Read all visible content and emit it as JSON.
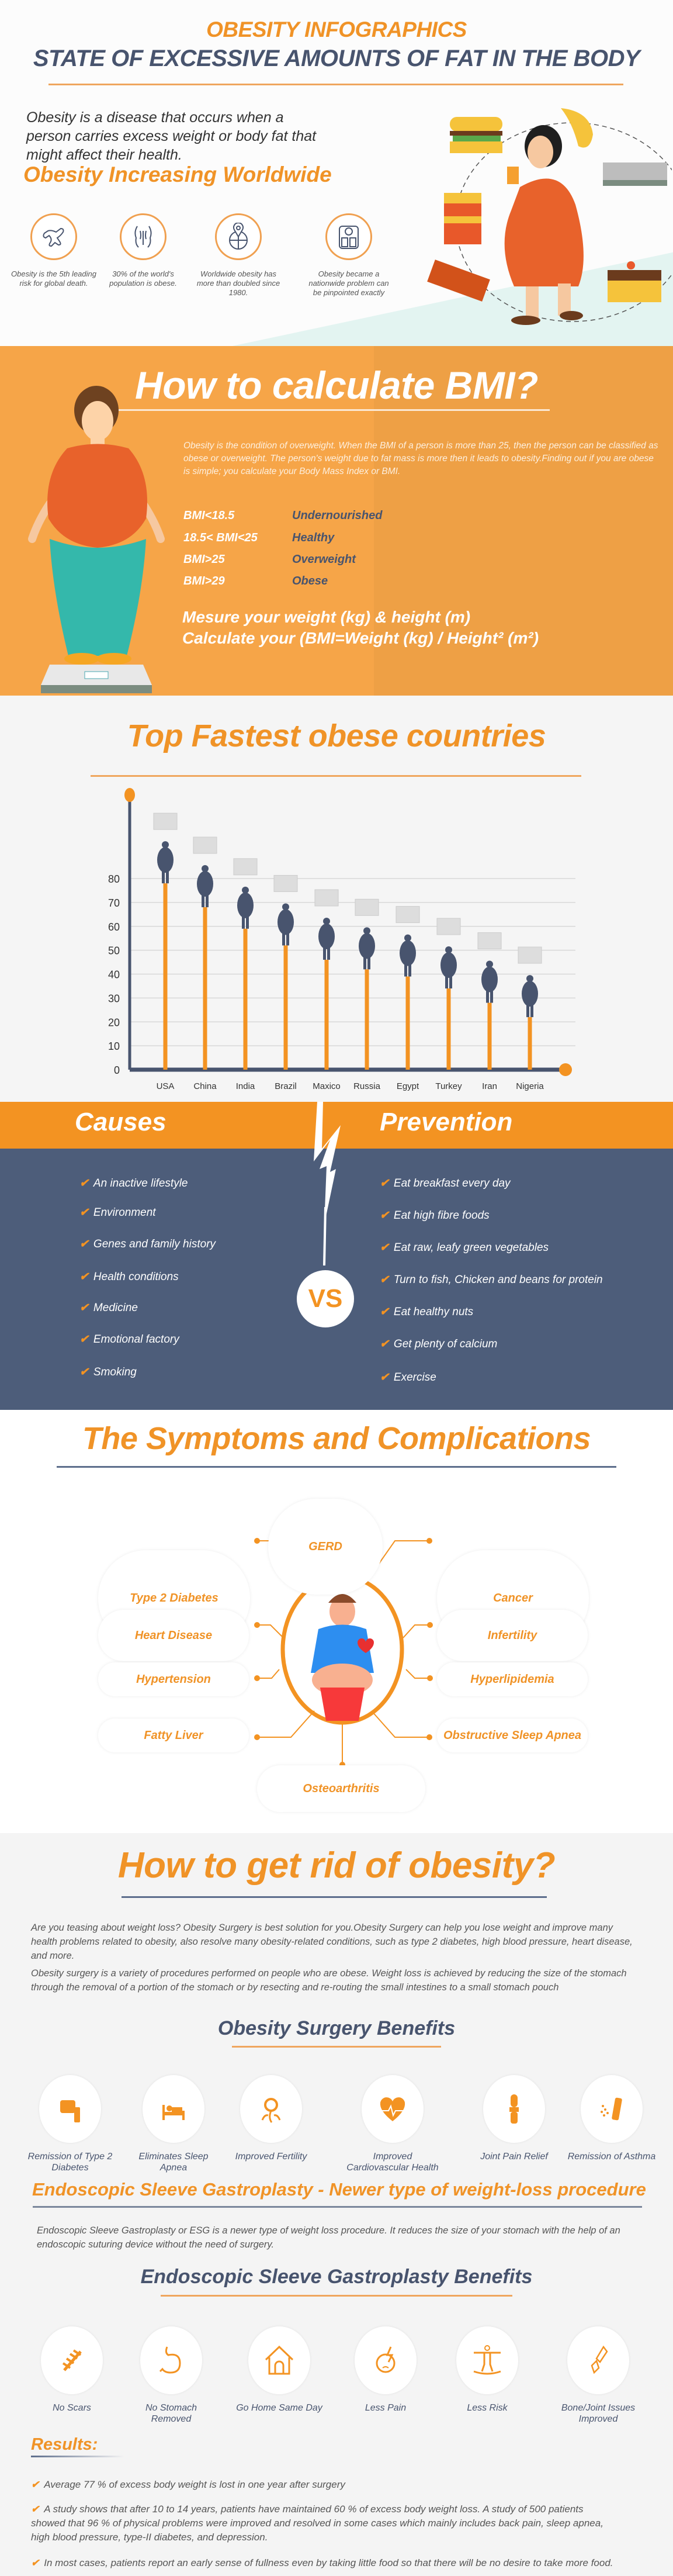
{
  "header": {
    "title": "OBESITY INFOGRAPHICS",
    "subtitle": "STATE OF EXCESSIVE AMOUNTS OF FAT IN THE BODY",
    "intro": "Obesity is a disease that occurs when a person carries excess weight or body fat that might affect their health.",
    "worldwide_heading": "Obesity Increasing Worldwide",
    "stats": [
      {
        "icon": "body-outline-icon",
        "text": "Obesity is the 5th leading risk for global death."
      },
      {
        "icon": "torso-icon",
        "text": "30% of the world's population is obese."
      },
      {
        "icon": "globe-pin-icon",
        "text": "Worldwide obesity has more than doubled since 1980."
      },
      {
        "icon": "scale-icon",
        "text": "Obesity became a nationwide problem can be pinpointed exactly"
      }
    ]
  },
  "bmi": {
    "title": "How to calculate BMI?",
    "description": "Obesity is the condition of overweight. When the BMI of a person is more than 25, then the person can be classified as obese or overweight. The person's weight due to fat mass is more then it leads to obesity.Finding out if you are obese is simple; you calculate your Body Mass Index or BMI.",
    "ranges": [
      {
        "range": "BMI<18.5",
        "label": "Undernourished"
      },
      {
        "range": "18.5< BMI<25",
        "label": "Healthy"
      },
      {
        "range": "BMI>25",
        "label": "Overweight"
      },
      {
        "range": "BMI>29",
        "label": "Obese"
      }
    ],
    "step1": "Mesure your weight (kg) & height (m)",
    "step2": "Calculate your (BMI=Weight (kg) / Height² (m²)"
  },
  "chart_data": {
    "type": "bar",
    "title": "Top Fastest obese countries",
    "categories": [
      "USA",
      "China",
      "India",
      "Brazil",
      "Maxico",
      "Russia",
      "Egypt",
      "Turkey",
      "Iran",
      "Nigeria"
    ],
    "values": [
      78,
      68,
      59,
      52,
      46,
      42,
      39,
      34,
      28,
      22
    ],
    "yticks": [
      0,
      10,
      20,
      30,
      40,
      50,
      60,
      70,
      80
    ],
    "ylim": [
      0,
      95
    ],
    "xlabel": "",
    "ylabel": "",
    "grid": true,
    "bar_color": "#f39322",
    "axis_color": "#48546e"
  },
  "causes": {
    "title": "Causes",
    "items": [
      "An inactive lifestyle",
      "Environment",
      "Genes and family history",
      "Health conditions",
      "Medicine",
      "Emotional factory",
      "Smoking"
    ]
  },
  "prevention": {
    "title": "Prevention",
    "items": [
      "Eat breakfast every day",
      "Eat high fibre foods",
      "Eat raw, leafy green vegetables",
      "Turn to fish, Chicken and beans for protein",
      "Eat healthy nuts",
      "Get plenty of calcium",
      "Exercise"
    ]
  },
  "vs_label": "VS",
  "symptoms": {
    "title": "The Symptoms and Complications",
    "items": [
      "GERD",
      "Type 2 Diabetes",
      "Cancer",
      "Heart Disease",
      "Infertility",
      "Hypertension",
      "Hyperlipidemia",
      "Fatty Liver",
      "Obstructive Sleep Apnea",
      "Osteoarthritis"
    ]
  },
  "rid": {
    "title": "How to get rid of obesity?",
    "para1": "Are you teasing about weight loss? Obesity Surgery is best solution for you.Obesity Surgery can help you lose weight and improve many health problems related to obesity, also resolve many obesity-related conditions, such as type 2 diabetes, high blood pressure, heart disease, and more.",
    "para2": "Obesity surgery is a variety of procedures performed on people who are obese. Weight loss is achieved by reducing the size of the stomach through the removal of a portion of the stomach or by resecting and re-routing the small intestines to a small stomach pouch",
    "surgery_benefits_title": "Obesity Surgery Benefits",
    "surgery_benefits": [
      {
        "icon": "glucose-meter-icon",
        "label": "Remission of Type 2 Diabetes"
      },
      {
        "icon": "bed-icon",
        "label": "Eliminates Sleep Apnea"
      },
      {
        "icon": "fertility-icon",
        "label": "Improved Fertility"
      },
      {
        "icon": "heart-pulse-icon",
        "label": "Improved Cardiovascular Health"
      },
      {
        "icon": "knee-joint-icon",
        "label": "Joint Pain Relief"
      },
      {
        "icon": "inhaler-icon",
        "label": "Remission of Asthma"
      }
    ],
    "esg_title": "Endoscopic Sleeve Gastroplasty - Newer type of weight-loss procedure",
    "esg_text": "Endoscopic Sleeve Gastroplasty or ESG is a newer type of weight loss procedure. It reduces the size of your stomach with the help of an endoscopic suturing device without the need of surgery.",
    "esg_benefits_title": "Endoscopic Sleeve Gastroplasty Benefits",
    "esg_benefits": [
      {
        "icon": "stitches-icon",
        "label": "No Scars"
      },
      {
        "icon": "stomach-icon",
        "label": "No Stomach Removed"
      },
      {
        "icon": "house-icon",
        "label": "Go Home Same Day"
      },
      {
        "icon": "headache-icon",
        "label": "Less Pain"
      },
      {
        "icon": "balance-icon",
        "label": "Less Risk"
      },
      {
        "icon": "bone-icon",
        "label": "Bone/Joint Issues Improved"
      }
    ],
    "results_title": "Results:",
    "results": [
      "Average 77 % of excess body weight is lost in one year after surgery",
      "A study shows that after 10 to 14 years, patients have maintained 60 % of excess body weight loss. A study of 500 patients showed that 96 % of physical problems were improved and resolved in some cases which mainly includes back pain, sleep apnea, high blood pressure, type-II diabetes, and depression.",
      "In most cases, patients report an early sense of fullness even by taking little food so that there will be no desire to take more food."
    ]
  }
}
